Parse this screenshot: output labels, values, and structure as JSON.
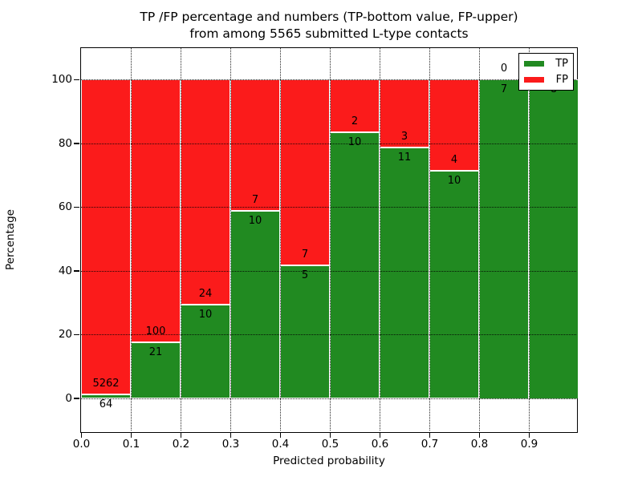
{
  "title": {
    "line1": "TP /FP percentage and numbers (TP-bottom value, FP-upper)",
    "line2": "from among 5565 submitted L-type contacts"
  },
  "axes": {
    "xlabel": "Predicted probability",
    "ylabel": "Percentage",
    "x_tick_labels": [
      "0.0",
      "0.1",
      "0.2",
      "0.3",
      "0.4",
      "0.5",
      "0.6",
      "0.7",
      "0.8",
      "0.9"
    ],
    "y_tick_labels": [
      "0",
      "20",
      "40",
      "60",
      "80",
      "100"
    ],
    "y_tick_values": [
      0,
      20,
      40,
      60,
      80,
      100
    ],
    "xlim": [
      0.0,
      1.0
    ],
    "ylim_percent": [
      -11,
      110
    ],
    "grid": true
  },
  "legend": {
    "items": [
      {
        "label": "TP",
        "color": "#218a21"
      },
      {
        "label": "FP",
        "color": "#fb1b1b"
      }
    ],
    "position": "upper right"
  },
  "colors": {
    "tp": "#218a21",
    "fp": "#fb1b1b",
    "bar_edge": "#ffffff",
    "grid": "#000000",
    "background": "#ffffff"
  },
  "chart_data": {
    "type": "bar",
    "variant": "stacked-normalized-percent",
    "title": "TP /FP percentage and numbers (TP-bottom value, FP-upper) from among 5565 submitted L-type contacts",
    "xlabel": "Predicted probability",
    "ylabel": "Percentage",
    "total_submitted": 5565,
    "bin_width": 0.1,
    "categories": [
      "0.0-0.1",
      "0.1-0.2",
      "0.2-0.3",
      "0.3-0.4",
      "0.4-0.5",
      "0.5-0.6",
      "0.6-0.7",
      "0.7-0.8",
      "0.8-0.9",
      "0.9-1.0"
    ],
    "series": [
      {
        "name": "TP",
        "color": "#218a21",
        "counts": [
          64,
          21,
          10,
          10,
          5,
          10,
          11,
          10,
          7,
          8
        ],
        "percent": [
          1.2,
          17.36,
          29.41,
          58.82,
          41.67,
          83.33,
          78.57,
          71.43,
          100,
          100
        ]
      },
      {
        "name": "FP",
        "color": "#fb1b1b",
        "counts": [
          5262,
          100,
          24,
          7,
          7,
          2,
          3,
          4,
          0,
          null
        ],
        "percent": [
          98.8,
          82.64,
          70.59,
          41.18,
          58.33,
          16.67,
          21.43,
          28.57,
          0,
          0
        ]
      }
    ],
    "bar_labels": [
      {
        "fp": "5262",
        "tp": "64"
      },
      {
        "fp": "100",
        "tp": "21"
      },
      {
        "fp": "24",
        "tp": "10"
      },
      {
        "fp": "7",
        "tp": "10"
      },
      {
        "fp": "7",
        "tp": "5"
      },
      {
        "fp": "2",
        "tp": "10"
      },
      {
        "fp": "3",
        "tp": "11"
      },
      {
        "fp": "4",
        "tp": "10"
      },
      {
        "fp": "0",
        "tp": "7"
      },
      {
        "fp": "",
        "tp": "8"
      }
    ],
    "grid": true,
    "legend_position": "upper right"
  }
}
